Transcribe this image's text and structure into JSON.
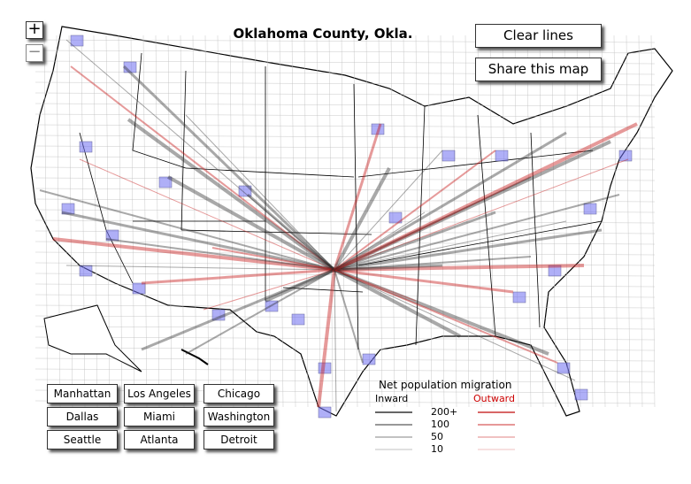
{
  "title": "Oklahoma County, Okla.",
  "zoom": {
    "in": "+",
    "out": "−"
  },
  "buttons": {
    "clear": "Clear lines",
    "share": "Share this map"
  },
  "cities": [
    "Manhattan",
    "Los Angeles",
    "Chicago",
    "Dallas",
    "Miami",
    "Washington",
    "Seattle",
    "Atlanta",
    "Detroit"
  ],
  "legend": {
    "title": "Net population migration",
    "inward": "Inward",
    "outward": "Outward",
    "levels": [
      "200+",
      "100",
      "50",
      "10"
    ]
  }
}
